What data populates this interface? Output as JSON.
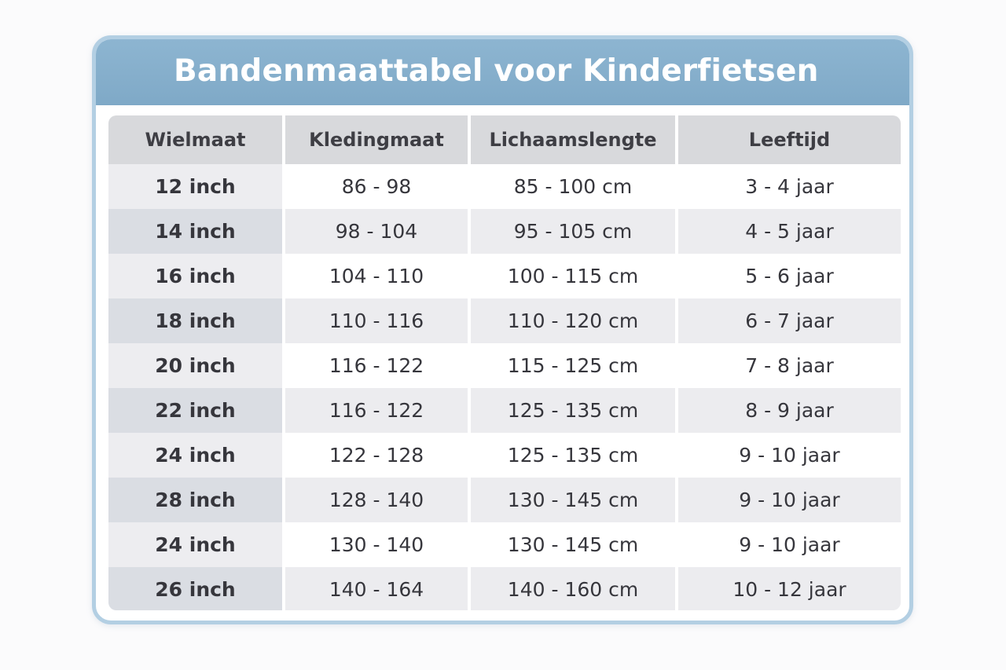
{
  "title": "Bandenmaattabel voor Kinderfietsen",
  "columns": [
    "Wielmaat",
    "Kledingmaat",
    "Lichaamslengte",
    "Leeftijd"
  ],
  "rows": [
    [
      "12 inch",
      "86 - 98",
      "85 - 100 cm",
      "3 - 4 jaar"
    ],
    [
      "14 inch",
      "98 - 104",
      "95 - 105 cm",
      "4 - 5 jaar"
    ],
    [
      "16 inch",
      "104 - 110",
      "100 - 115 cm",
      "5 - 6 jaar"
    ],
    [
      "18 inch",
      "110 - 116",
      "110 - 120 cm",
      "6 - 7 jaar"
    ],
    [
      "20 inch",
      "116 - 122",
      "115 - 125 cm",
      "7 - 8 jaar"
    ],
    [
      "22 inch",
      "116 - 122",
      "125 - 135 cm",
      "8 - 9 jaar"
    ],
    [
      "24 inch",
      "122 - 128",
      "125 - 135 cm",
      "9 - 10 jaar"
    ],
    [
      "28 inch",
      "128 - 140",
      "130 - 145 cm",
      "9 - 10 jaar"
    ],
    [
      "24 inch",
      "130 - 140",
      "130 - 145 cm",
      "9 - 10 jaar"
    ],
    [
      "26 inch",
      "140 - 164",
      "140 - 160 cm",
      "10 - 12 jaar"
    ]
  ],
  "colors": {
    "header_blue": "#82abc9",
    "border_blue": "#b3cfe3",
    "column_header_gray": "#d8d9dc",
    "row_alt_gray": "#ececef"
  }
}
